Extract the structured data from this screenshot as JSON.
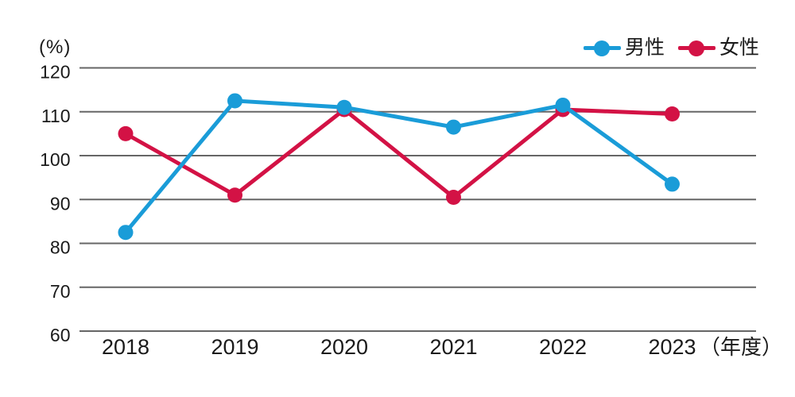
{
  "page": {
    "background_color": "#ffffff",
    "text_color": "#1a1a1a"
  },
  "chart_data": {
    "type": "line",
    "title": "",
    "categories": [
      "2018",
      "2019",
      "2020",
      "2021",
      "2022",
      "2023"
    ],
    "series": [
      {
        "key": "male",
        "name": "男性",
        "color": "#1a9cd8",
        "values": [
          82.5,
          112.5,
          111.0,
          106.5,
          111.5,
          93.5
        ]
      },
      {
        "key": "female",
        "name": "女性",
        "color": "#d31245",
        "values": [
          105.0,
          91.0,
          110.5,
          90.5,
          110.5,
          109.5
        ]
      }
    ],
    "xlabel": "（年度）",
    "ylabel": "(%)",
    "ylim": [
      60,
      120
    ],
    "yticks": [
      120,
      110,
      100,
      90,
      80,
      70,
      60
    ],
    "grid": "horizontal-only",
    "gridline_color": "#666666",
    "tick_text_color": "#1a1a1a",
    "legend_position": "top-right",
    "marker": "circle",
    "draw_order_note": "male(blue) series drawn on top of female(red)"
  }
}
